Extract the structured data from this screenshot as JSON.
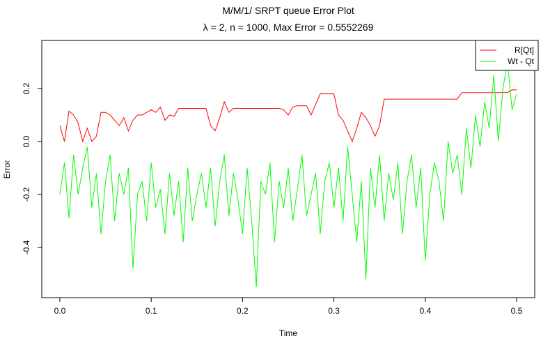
{
  "chart_data": {
    "type": "line",
    "title": "M/M/1/ SRPT queue Error Plot",
    "subtitle": "λ = 2, n = 1000, Max Error = 0.5552269",
    "x_label": "Time",
    "y_label": "Error",
    "xlim": [
      -0.0198,
      0.5198
    ],
    "ylim": [
      -0.5895,
      0.3816
    ],
    "xticks": [
      {
        "value": 0,
        "label": "0.0"
      },
      0.1,
      0.2,
      0.3,
      0.4,
      0.5
    ],
    "yticks": [
      -0.4,
      -0.2,
      {
        "value": 0,
        "label": "0.0"
      },
      0.2
    ],
    "legend_position": "top-right",
    "x": [
      0,
      0.005,
      0.01,
      0.015,
      0.02,
      0.025,
      0.03,
      0.035,
      0.04,
      0.045,
      0.05,
      0.055,
      0.06,
      0.065,
      0.07,
      0.075,
      0.08,
      0.085,
      0.09,
      0.095,
      0.1,
      0.105,
      0.11,
      0.115,
      0.12,
      0.125,
      0.13,
      0.135,
      0.14,
      0.145,
      0.15,
      0.155,
      0.16,
      0.165,
      0.17,
      0.175,
      0.18,
      0.185,
      0.19,
      0.195,
      0.2,
      0.205,
      0.21,
      0.215,
      0.22,
      0.225,
      0.23,
      0.235,
      0.24,
      0.245,
      0.25,
      0.255,
      0.26,
      0.265,
      0.27,
      0.275,
      0.28,
      0.285,
      0.29,
      0.295,
      0.3,
      0.305,
      0.31,
      0.315,
      0.32,
      0.325,
      0.33,
      0.335,
      0.34,
      0.345,
      0.35,
      0.355,
      0.36,
      0.365,
      0.37,
      0.375,
      0.38,
      0.385,
      0.39,
      0.395,
      0.4,
      0.405,
      0.41,
      0.415,
      0.42,
      0.425,
      0.43,
      0.435,
      0.44,
      0.445,
      0.45,
      0.455,
      0.46,
      0.465,
      0.47,
      0.475,
      0.48,
      0.485,
      0.49,
      0.495,
      0.5
    ],
    "series": [
      {
        "name": "R[Qt]",
        "color": "#ff0000",
        "values": [
          0.06,
          0.0,
          0.115,
          0.1,
          0.07,
          0.0,
          0.05,
          0.0,
          0.02,
          0.11,
          0.11,
          0.1,
          0.08,
          0.06,
          0.09,
          0.04,
          0.08,
          0.1,
          0.1,
          0.11,
          0.12,
          0.11,
          0.13,
          0.08,
          0.1,
          0.095,
          0.125,
          0.125,
          0.125,
          0.125,
          0.125,
          0.125,
          0.125,
          0.06,
          0.04,
          0.09,
          0.15,
          0.11,
          0.125,
          0.125,
          0.125,
          0.125,
          0.125,
          0.125,
          0.125,
          0.125,
          0.125,
          0.125,
          0.125,
          0.12,
          0.1,
          0.13,
          0.135,
          0.135,
          0.135,
          0.1,
          0.14,
          0.18,
          0.18,
          0.18,
          0.18,
          0.1,
          0.08,
          0.04,
          0.0,
          0.05,
          0.11,
          0.09,
          0.06,
          0.02,
          0.06,
          0.16,
          0.16,
          0.16,
          0.16,
          0.16,
          0.16,
          0.16,
          0.16,
          0.16,
          0.16,
          0.16,
          0.16,
          0.16,
          0.16,
          0.16,
          0.16,
          0.16,
          0.185,
          0.185,
          0.185,
          0.185,
          0.185,
          0.185,
          0.185,
          0.185,
          0.185,
          0.185,
          0.185,
          0.195,
          0.195
        ]
      },
      {
        "name": "Wt - Qt",
        "color": "#00ff00",
        "values": [
          -0.2,
          -0.08,
          -0.29,
          -0.05,
          -0.2,
          -0.1,
          -0.02,
          -0.25,
          -0.12,
          -0.35,
          -0.15,
          -0.05,
          -0.3,
          -0.12,
          -0.2,
          -0.1,
          -0.48,
          -0.2,
          -0.15,
          -0.3,
          -0.08,
          -0.25,
          -0.18,
          -0.35,
          -0.12,
          -0.28,
          -0.15,
          -0.38,
          -0.1,
          -0.3,
          -0.2,
          -0.12,
          -0.25,
          -0.1,
          -0.32,
          -0.15,
          -0.05,
          -0.28,
          -0.12,
          -0.22,
          -0.35,
          -0.1,
          -0.3,
          -0.55,
          -0.15,
          -0.2,
          -0.08,
          -0.38,
          -0.15,
          -0.25,
          -0.1,
          -0.3,
          -0.18,
          -0.05,
          -0.28,
          -0.2,
          -0.12,
          -0.35,
          -0.15,
          -0.08,
          -0.25,
          -0.1,
          -0.3,
          -0.02,
          -0.2,
          -0.38,
          -0.15,
          -0.52,
          -0.1,
          -0.25,
          -0.05,
          -0.3,
          -0.12,
          -0.22,
          -0.08,
          -0.35,
          -0.15,
          -0.05,
          -0.25,
          -0.1,
          -0.45,
          -0.2,
          -0.08,
          -0.15,
          -0.3,
          0.0,
          -0.12,
          -0.05,
          -0.2,
          0.05,
          -0.1,
          0.1,
          -0.02,
          0.15,
          0.05,
          0.25,
          0.0,
          0.2,
          0.3,
          0.12,
          0.18
        ]
      }
    ]
  }
}
